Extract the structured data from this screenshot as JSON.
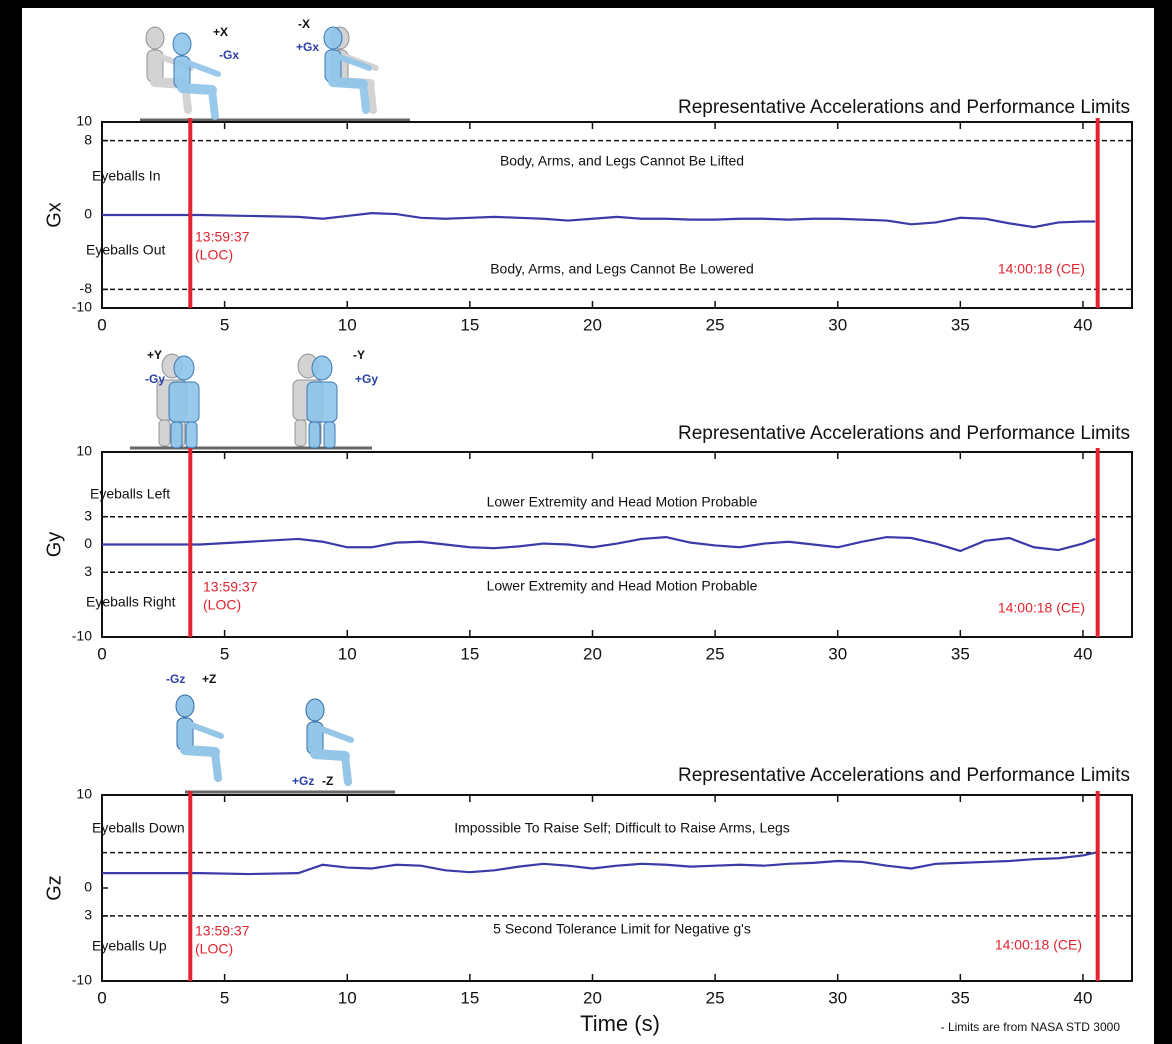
{
  "chart_data": [
    {
      "type": "line",
      "title": "Representative Accelerations and Performance Limits",
      "y_label": "Gx",
      "upper_region": "Eyeballs In",
      "lower_region": "Eyeballs Out",
      "upper_note": "Body, Arms, and Legs Cannot Be Lifted",
      "lower_note": "Body, Arms, and Legs Cannot Be Lowered",
      "figures": [
        [
          "+X",
          "-Gx"
        ],
        [
          "-X",
          "+Gx"
        ]
      ],
      "limits": [
        8,
        -8
      ],
      "events": [
        {
          "x": 3.6,
          "label": [
            "13:59:37",
            "(LOC)"
          ]
        },
        {
          "x": 40.6,
          "label": [
            "14:00:18 (CE)"
          ]
        }
      ],
      "xlim": [
        0,
        42
      ],
      "ylim": [
        -10,
        10
      ],
      "xticks": [
        0,
        5,
        10,
        15,
        20,
        25,
        30,
        35,
        40
      ],
      "yticks": [
        10,
        8,
        0,
        -8,
        -10
      ],
      "x": [
        0,
        2,
        4,
        6,
        8,
        9,
        10,
        11,
        12,
        13,
        14,
        15,
        16,
        17,
        18,
        19,
        20,
        21,
        22,
        23,
        24,
        25,
        26,
        27,
        28,
        29,
        30,
        31,
        32,
        33,
        34,
        35,
        36,
        37,
        38,
        39,
        40,
        40.5
      ],
      "series": [
        {
          "color": "#3a3aa8",
          "values": [
            0,
            0,
            0,
            -0.1,
            -0.2,
            -0.4,
            -0.1,
            0.2,
            0.1,
            -0.3,
            -0.4,
            -0.3,
            -0.2,
            -0.3,
            -0.4,
            -0.6,
            -0.4,
            -0.2,
            -0.4,
            -0.4,
            -0.5,
            -0.5,
            -0.4,
            -0.4,
            -0.5,
            -0.4,
            -0.4,
            -0.5,
            -0.6,
            -1.0,
            -0.8,
            -0.3,
            -0.4,
            -0.9,
            -1.3,
            -0.8,
            -0.7,
            -0.7
          ]
        }
      ]
    },
    {
      "type": "line",
      "title": "Representative Accelerations and Performance Limits",
      "y_label": "Gy",
      "upper_region": "Eyeballs Left",
      "lower_region": "Eyeballs Right",
      "upper_note": "Lower Extremity and Head Motion Probable",
      "lower_note": "Lower Extremity and Head Motion Probable",
      "figures": [
        [
          "+Y",
          "-Gy"
        ],
        [
          "-Y",
          "+Gy"
        ]
      ],
      "limits": [
        3,
        -3
      ],
      "events": [
        {
          "x": 3.6,
          "label": [
            "13:59:37",
            "(LOC)"
          ]
        },
        {
          "x": 40.6,
          "label": [
            "14:00:18 (CE)"
          ]
        }
      ],
      "xlim": [
        0,
        42
      ],
      "ylim": [
        -10,
        10
      ],
      "xticks": [
        0,
        5,
        10,
        15,
        20,
        25,
        30,
        35,
        40
      ],
      "yticks": [
        10,
        3,
        0,
        {
          "value": -3,
          "label": "3"
        },
        -10
      ],
      "x": [
        0,
        2,
        4,
        6,
        8,
        9,
        10,
        11,
        12,
        13,
        14,
        15,
        16,
        17,
        18,
        19,
        20,
        21,
        22,
        23,
        24,
        25,
        26,
        27,
        28,
        29,
        30,
        31,
        32,
        33,
        34,
        35,
        36,
        37,
        38,
        39,
        40,
        40.5
      ],
      "series": [
        {
          "color": "#3a3aa8",
          "values": [
            0,
            0,
            0,
            0.3,
            0.6,
            0.3,
            -0.3,
            -0.3,
            0.2,
            0.3,
            0,
            -0.3,
            -0.4,
            -0.2,
            0.1,
            0,
            -0.3,
            0.1,
            0.6,
            0.8,
            0.2,
            -0.1,
            -0.3,
            0.1,
            0.3,
            0,
            -0.3,
            0.3,
            0.8,
            0.7,
            0.1,
            -0.7,
            0.4,
            0.7,
            -0.3,
            -0.6,
            0.1,
            0.6
          ]
        }
      ]
    },
    {
      "type": "line",
      "title": "Representative Accelerations and Performance Limits",
      "y_label": "Gz",
      "x_label": "Time (s)",
      "upper_region": "Eyeballs Down",
      "lower_region": "Eyeballs Up",
      "upper_note": "Impossible To Raise Self; Difficult to Raise Arms, Legs",
      "lower_note": "5 Second Tolerance Limit for Negative g's",
      "figures": [
        [
          "-Gz",
          "+Z"
        ],
        [
          "+Gz",
          "-Z"
        ]
      ],
      "limits": [
        3.8,
        -3
      ],
      "events": [
        {
          "x": 3.6,
          "label": [
            "13:59:37",
            "(LOC)"
          ]
        },
        {
          "x": 40.6,
          "label": [
            "14:00:18 (CE)"
          ]
        }
      ],
      "footnote": "- Limits are from NASA STD 3000",
      "xlim": [
        0,
        42
      ],
      "ylim": [
        -10,
        10
      ],
      "xticks": [
        0,
        5,
        10,
        15,
        20,
        25,
        30,
        35,
        40
      ],
      "yticks": [
        10,
        0,
        {
          "value": -3,
          "label": "3"
        },
        -10
      ],
      "x": [
        0,
        2,
        4,
        6,
        8,
        9,
        10,
        11,
        12,
        13,
        14,
        15,
        16,
        17,
        18,
        19,
        20,
        21,
        22,
        23,
        24,
        25,
        26,
        27,
        28,
        29,
        30,
        31,
        32,
        33,
        34,
        35,
        36,
        37,
        38,
        39,
        40,
        40.5
      ],
      "series": [
        {
          "color": "#3a3aa8",
          "values": [
            1.6,
            1.6,
            1.6,
            1.5,
            1.6,
            2.5,
            2.2,
            2.1,
            2.5,
            2.4,
            1.9,
            1.7,
            1.9,
            2.3,
            2.6,
            2.4,
            2.1,
            2.4,
            2.6,
            2.5,
            2.3,
            2.4,
            2.5,
            2.4,
            2.6,
            2.7,
            2.9,
            2.8,
            2.4,
            2.1,
            2.6,
            2.7,
            2.8,
            2.9,
            3.1,
            3.2,
            3.5,
            3.8
          ]
        }
      ]
    }
  ]
}
